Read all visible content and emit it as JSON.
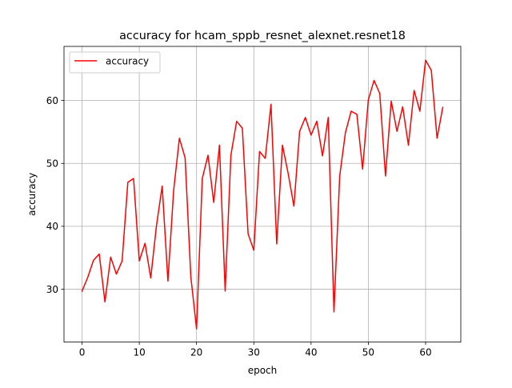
{
  "chart_data": {
    "type": "line",
    "title": "accuracy for hcam_sppb_resnet_alexnet.resnet18",
    "xlabel": "epoch",
    "ylabel": "accuracy",
    "xlim": [
      -3.15,
      66.15
    ],
    "ylim": [
      21.6,
      68.6
    ],
    "xticks": [
      0,
      10,
      20,
      30,
      40,
      50,
      60
    ],
    "yticks": [
      30,
      40,
      50,
      60
    ],
    "grid": true,
    "legend_position": "upper-left",
    "series": [
      {
        "name": "accuracy",
        "color": "#ff0000",
        "x": [
          0,
          1,
          2,
          3,
          4,
          5,
          6,
          7,
          8,
          9,
          10,
          11,
          12,
          13,
          14,
          15,
          16,
          17,
          18,
          19,
          20,
          21,
          22,
          23,
          24,
          25,
          26,
          27,
          28,
          29,
          30,
          31,
          32,
          33,
          34,
          35,
          36,
          37,
          38,
          39,
          40,
          41,
          42,
          43,
          44,
          45,
          46,
          47,
          48,
          49,
          50,
          51,
          52,
          53,
          54,
          55,
          56,
          57,
          58,
          59,
          60,
          61,
          62,
          63
        ],
        "values": [
          29.7,
          31.9,
          34.6,
          35.6,
          28.0,
          35.1,
          32.4,
          34.5,
          47.0,
          47.6,
          34.5,
          37.3,
          31.8,
          40.1,
          46.4,
          31.3,
          45.7,
          54.0,
          50.9,
          32.0,
          23.7,
          47.6,
          51.3,
          43.8,
          52.9,
          29.7,
          51.3,
          56.7,
          55.6,
          38.8,
          36.2,
          51.9,
          50.8,
          59.4,
          37.2,
          52.9,
          48.4,
          43.2,
          55.1,
          57.3,
          54.5,
          56.7,
          51.2,
          57.3,
          26.4,
          48.0,
          54.9,
          58.3,
          57.8,
          49.1,
          60.1,
          63.2,
          61.1,
          48.0,
          59.9,
          55.1,
          59.0,
          52.9,
          61.6,
          58.3,
          66.4,
          64.8,
          54.0,
          58.9
        ]
      }
    ]
  }
}
